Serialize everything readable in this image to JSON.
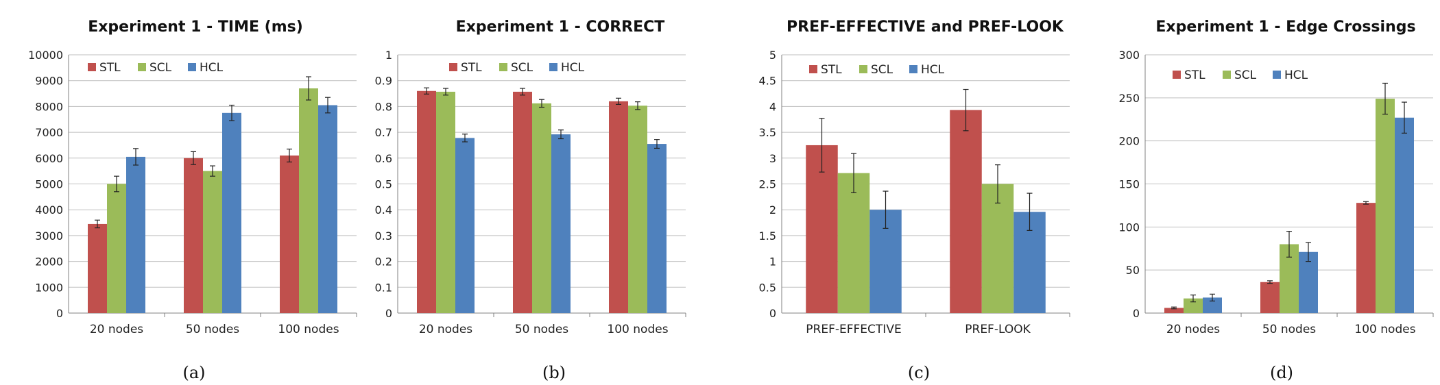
{
  "colors": {
    "STL": "#c0504d",
    "SCL": "#9bbb59",
    "HCL": "#4f81bd"
  },
  "chart_data": [
    {
      "type": "bar",
      "title": "Experiment 1 - TIME (ms)",
      "caption": "(a)",
      "categories": [
        "20 nodes",
        "50 nodes",
        "100 nodes"
      ],
      "yticks": [
        "0",
        "1000",
        "2000",
        "3000",
        "4000",
        "5000",
        "6000",
        "7000",
        "8000",
        "9000",
        "10000"
      ],
      "ylim": [
        0,
        10000
      ],
      "legend_position": "top-left",
      "grid": true,
      "series": [
        {
          "name": "STL",
          "values": [
            3450,
            6000,
            6100
          ],
          "errors": [
            150,
            250,
            250
          ]
        },
        {
          "name": "SCL",
          "values": [
            5000,
            5500,
            8700
          ],
          "errors": [
            300,
            200,
            450
          ]
        },
        {
          "name": "HCL",
          "values": [
            6050,
            7750,
            8050
          ],
          "errors": [
            320,
            300,
            300
          ]
        }
      ]
    },
    {
      "type": "bar",
      "title": "Experiment 1 - CORRECT",
      "caption": "(b)",
      "categories": [
        "20 nodes",
        "50 nodes",
        "100 nodes"
      ],
      "yticks": [
        "0",
        "0.1",
        "0.2",
        "0.3",
        "0.4",
        "0.5",
        "0.6",
        "0.7",
        "0.8",
        "0.9",
        "1"
      ],
      "ylim": [
        0,
        1
      ],
      "legend_position": "top-left",
      "grid": true,
      "series": [
        {
          "name": "STL",
          "values": [
            0.86,
            0.857,
            0.82
          ],
          "errors": [
            0.012,
            0.013,
            0.012
          ]
        },
        {
          "name": "SCL",
          "values": [
            0.857,
            0.812,
            0.803
          ],
          "errors": [
            0.013,
            0.015,
            0.015
          ]
        },
        {
          "name": "HCL",
          "values": [
            0.678,
            0.692,
            0.655
          ],
          "errors": [
            0.015,
            0.017,
            0.017
          ]
        }
      ]
    },
    {
      "type": "bar",
      "title": "PREF-EFFECTIVE and PREF-LOOK",
      "caption": "(c)",
      "categories": [
        "PREF-EFFECTIVE",
        "PREF-LOOK"
      ],
      "yticks": [
        "0",
        "0.5",
        "1",
        "1.5",
        "2",
        "2.5",
        "3",
        "3.5",
        "4",
        "4.5",
        "5"
      ],
      "ylim": [
        0,
        5
      ],
      "legend_position": "top-left",
      "grid": true,
      "series": [
        {
          "name": "STL",
          "values": [
            3.25,
            3.93
          ],
          "errors": [
            0.52,
            0.4
          ]
        },
        {
          "name": "SCL",
          "values": [
            2.71,
            2.5
          ],
          "errors": [
            0.38,
            0.37
          ]
        },
        {
          "name": "HCL",
          "values": [
            2.0,
            1.96
          ],
          "errors": [
            0.36,
            0.36
          ]
        }
      ]
    },
    {
      "type": "bar",
      "title": "Experiment 1 - Edge Crossings",
      "caption": "(d)",
      "categories": [
        "20 nodes",
        "50 nodes",
        "100 nodes"
      ],
      "yticks": [
        "0",
        "50",
        "100",
        "150",
        "200",
        "250",
        "300"
      ],
      "ylim": [
        0,
        300
      ],
      "legend_position": "top-left",
      "grid": true,
      "series": [
        {
          "name": "STL",
          "values": [
            6,
            36,
            128
          ],
          "errors": [
            1,
            1.5,
            1.5
          ]
        },
        {
          "name": "SCL",
          "values": [
            17,
            80,
            249
          ],
          "errors": [
            4,
            15,
            18
          ]
        },
        {
          "name": "HCL",
          "values": [
            18,
            71,
            227
          ],
          "errors": [
            4,
            11,
            18
          ]
        }
      ]
    }
  ]
}
